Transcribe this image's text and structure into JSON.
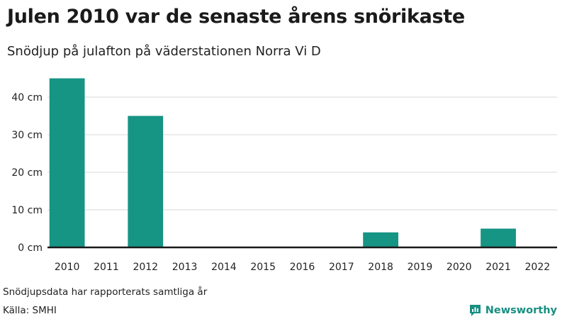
{
  "header": {
    "title": "Julen 2010 var de senaste årens snörikaste",
    "subtitle": "Snödjup på julafton på väderstationen Norra Vi D"
  },
  "footer": {
    "note": "Snödjupsdata har rapporterats samtliga år",
    "source": "Källa: SMHI",
    "brand": "Newsworthy"
  },
  "colors": {
    "bar": "#169484",
    "brand": "#178f81"
  },
  "chart_data": {
    "type": "bar",
    "categories": [
      "2010",
      "2011",
      "2012",
      "2013",
      "2014",
      "2015",
      "2016",
      "2017",
      "2018",
      "2019",
      "2020",
      "2021",
      "2022"
    ],
    "values": [
      45,
      0,
      35,
      0,
      0,
      0,
      0,
      0,
      4,
      0,
      0,
      5,
      0
    ],
    "ylim": [
      0,
      50
    ],
    "yticks": [
      0,
      10,
      20,
      30,
      40
    ],
    "ytick_labels": [
      "0 cm",
      "10 cm",
      "20 cm",
      "30 cm",
      "40 cm"
    ],
    "grid": true
  }
}
